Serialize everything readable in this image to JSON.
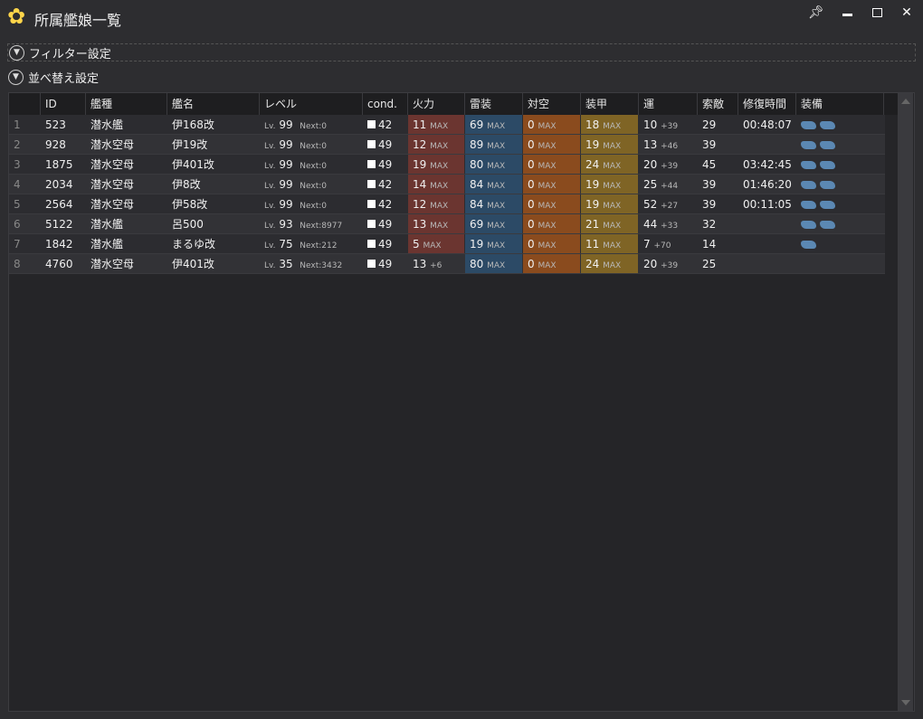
{
  "window": {
    "title": "所属艦娘一覧",
    "logo_icon": "sakura-icon",
    "controls": [
      "pin-icon",
      "minimize-icon",
      "maximize-icon",
      "close-icon"
    ]
  },
  "sections": {
    "filter": "フィルター設定",
    "sort": "並べ替え設定"
  },
  "colors": {
    "firepower": "#6b3530",
    "torpedo": "#2c4a66",
    "antiair": "#8a4b1e",
    "armor": "#7f6425",
    "equipment": "#5b88b3"
  },
  "columns": [
    "",
    "ID",
    "艦種",
    "艦名",
    "レベル",
    "cond.",
    "火力",
    "雷装",
    "対空",
    "装甲",
    "運",
    "索敵",
    "修復時間",
    "装備"
  ],
  "rows": [
    {
      "n": "1",
      "id": "523",
      "type": "潜水艦",
      "name": "伊168改",
      "lv": "99",
      "next": "Next:0",
      "cond": "42",
      "fp": "11",
      "fps": "MAX",
      "tp": "69",
      "tps": "MAX",
      "aa": "0",
      "aas": "MAX",
      "ar": "18",
      "ars": "MAX",
      "luck": "10",
      "lucks": "+39",
      "los": "29",
      "repair": "00:48:07",
      "equip": 2
    },
    {
      "n": "2",
      "id": "928",
      "type": "潜水空母",
      "name": "伊19改",
      "lv": "99",
      "next": "Next:0",
      "cond": "49",
      "fp": "12",
      "fps": "MAX",
      "tp": "89",
      "tps": "MAX",
      "aa": "0",
      "aas": "MAX",
      "ar": "19",
      "ars": "MAX",
      "luck": "13",
      "lucks": "+46",
      "los": "39",
      "repair": "",
      "equip": 2
    },
    {
      "n": "3",
      "id": "1875",
      "type": "潜水空母",
      "name": "伊401改",
      "lv": "99",
      "next": "Next:0",
      "cond": "49",
      "fp": "19",
      "fps": "MAX",
      "tp": "80",
      "tps": "MAX",
      "aa": "0",
      "aas": "MAX",
      "ar": "24",
      "ars": "MAX",
      "luck": "20",
      "lucks": "+39",
      "los": "45",
      "repair": "03:42:45",
      "equip": 2
    },
    {
      "n": "4",
      "id": "2034",
      "type": "潜水空母",
      "name": "伊8改",
      "lv": "99",
      "next": "Next:0",
      "cond": "42",
      "fp": "14",
      "fps": "MAX",
      "tp": "84",
      "tps": "MAX",
      "aa": "0",
      "aas": "MAX",
      "ar": "19",
      "ars": "MAX",
      "luck": "25",
      "lucks": "+44",
      "los": "39",
      "repair": "01:46:20",
      "equip": 2
    },
    {
      "n": "5",
      "id": "2564",
      "type": "潜水空母",
      "name": "伊58改",
      "lv": "99",
      "next": "Next:0",
      "cond": "42",
      "fp": "12",
      "fps": "MAX",
      "tp": "84",
      "tps": "MAX",
      "aa": "0",
      "aas": "MAX",
      "ar": "19",
      "ars": "MAX",
      "luck": "52",
      "lucks": "+27",
      "los": "39",
      "repair": "00:11:05",
      "equip": 2
    },
    {
      "n": "6",
      "id": "5122",
      "type": "潜水艦",
      "name": "呂500",
      "lv": "93",
      "next": "Next:8977",
      "cond": "49",
      "fp": "13",
      "fps": "MAX",
      "tp": "69",
      "tps": "MAX",
      "aa": "0",
      "aas": "MAX",
      "ar": "21",
      "ars": "MAX",
      "luck": "44",
      "lucks": "+33",
      "los": "32",
      "repair": "",
      "equip": 2
    },
    {
      "n": "7",
      "id": "1842",
      "type": "潜水艦",
      "name": "まるゆ改",
      "lv": "75",
      "next": "Next:212",
      "cond": "49",
      "fp": "5",
      "fps": "MAX",
      "tp": "19",
      "tps": "MAX",
      "aa": "0",
      "aas": "MAX",
      "ar": "11",
      "ars": "MAX",
      "luck": "7",
      "lucks": "+70",
      "los": "14",
      "repair": "",
      "equip": 1
    },
    {
      "n": "8",
      "id": "4760",
      "type": "潜水空母",
      "name": "伊401改",
      "lv": "35",
      "next": "Next:3432",
      "cond": "49",
      "fp": "13",
      "fps": "+6",
      "tp": "80",
      "tps": "MAX",
      "aa": "0",
      "aas": "MAX",
      "ar": "24",
      "ars": "MAX",
      "luck": "20",
      "lucks": "+39",
      "los": "25",
      "repair": "",
      "equip": 0
    }
  ],
  "lv_prefix": "Lv."
}
